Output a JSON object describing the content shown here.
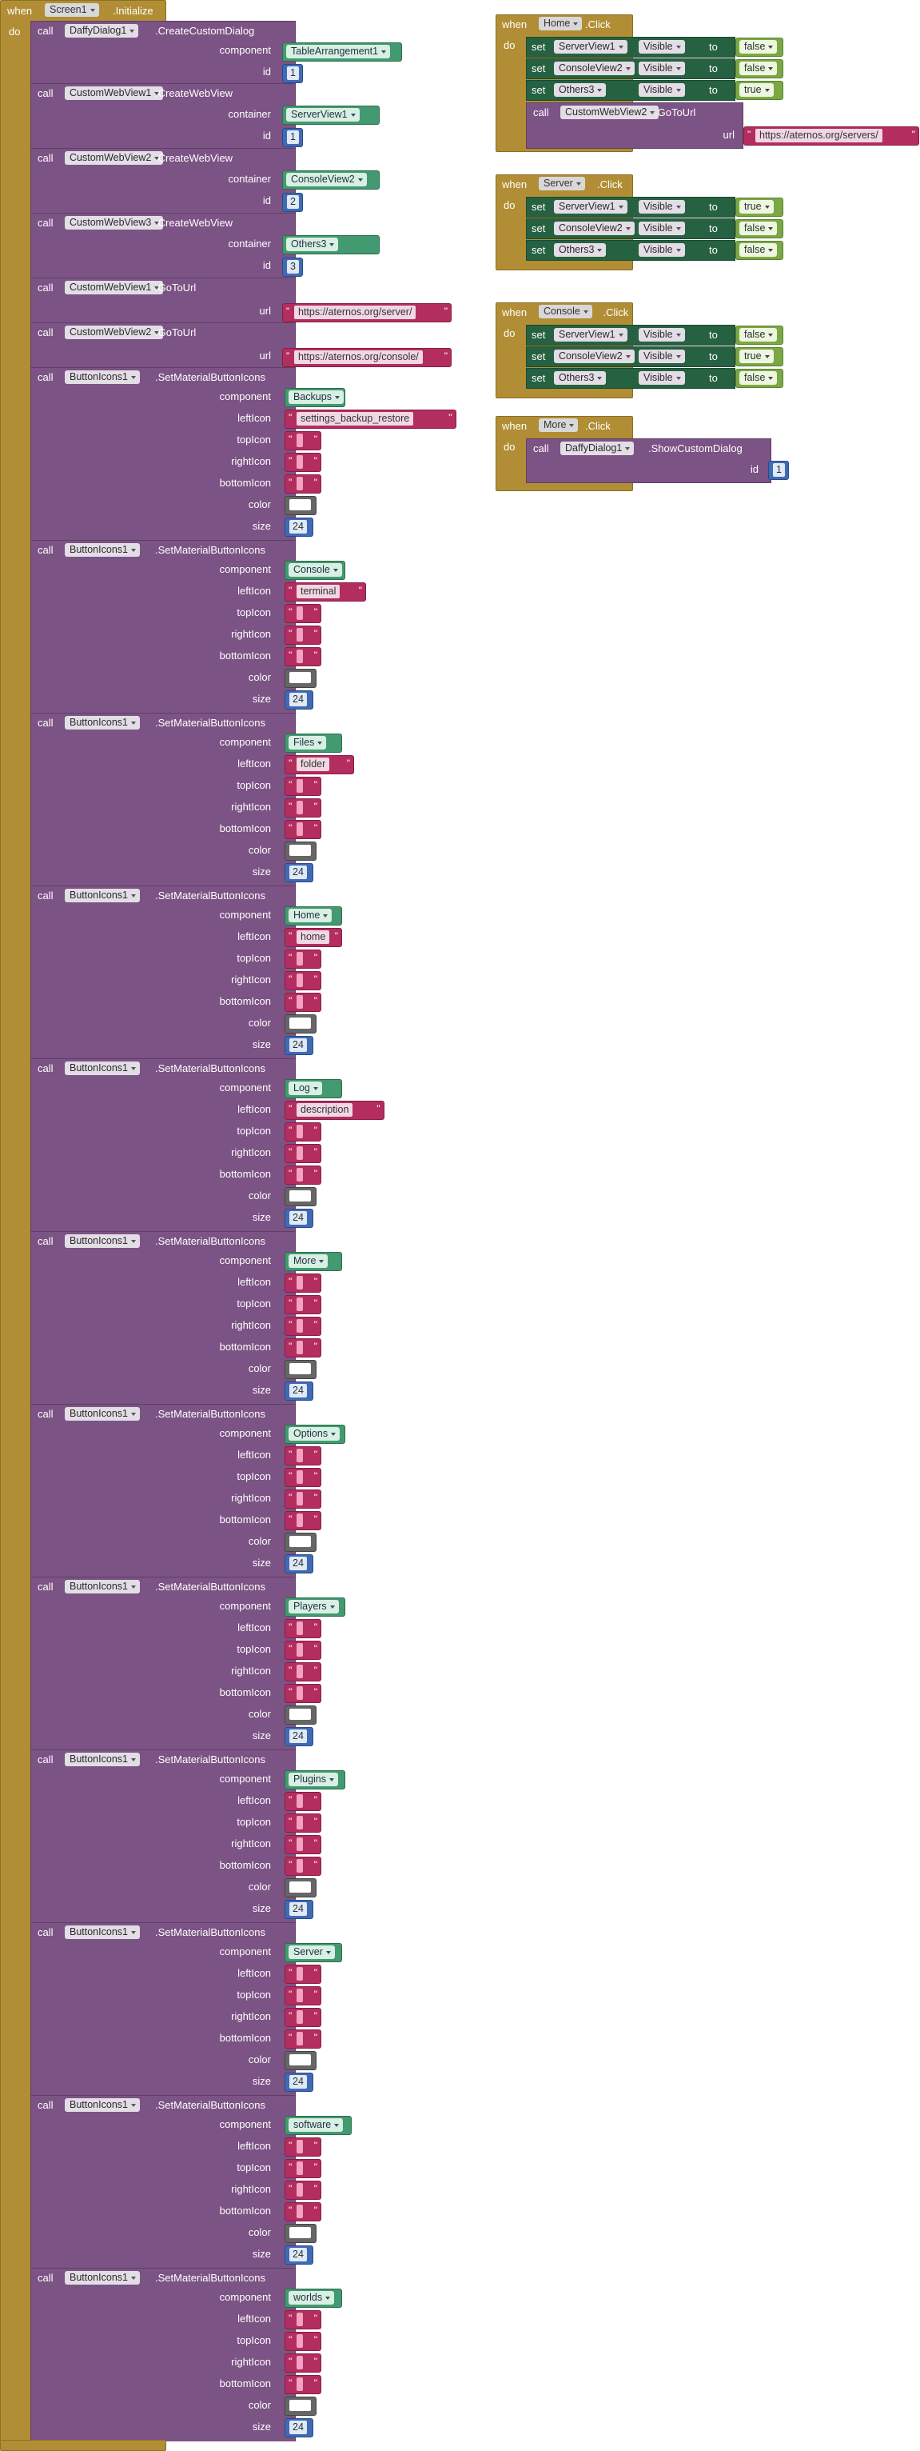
{
  "colors": {
    "event": "#b18e35",
    "procedure": "#7c5385",
    "setter": "#266141",
    "component": "#439970",
    "text": "#b32d5e",
    "number": "#3f6bb5",
    "logic": "#7aa844",
    "color_white": "#ffffff"
  },
  "labels": {
    "when": "when",
    "do": "do",
    "call": "call",
    "set": "set",
    "to": "to",
    "click": ".Click",
    "initialize": ".Initialize",
    "create_custom_dialog": ".CreateCustomDialog",
    "create_web_view": ".CreateWebView",
    "go_to_url": ".GoToUrl",
    "set_material_button_icons": ".SetMaterialButtonIcons",
    "show_custom_dialog": ".ShowCustomDialog",
    "component": "component",
    "id": "id",
    "container": "container",
    "url": "url",
    "leftIcon": "leftIcon",
    "topIcon": "topIcon",
    "rightIcon": "rightIcon",
    "bottomIcon": "bottomIcon",
    "color": "color",
    "size": "size",
    "visible": "Visible",
    "quote": "\""
  },
  "init": {
    "screen": "Screen1",
    "dialog": {
      "object": "DaffyDialog1",
      "component": "TableArrangement1",
      "id": "1"
    },
    "webviews": [
      {
        "object": "CustomWebView1",
        "container": "ServerView1",
        "id": "1"
      },
      {
        "object": "CustomWebView2",
        "container": "ConsoleView2",
        "id": "2"
      },
      {
        "object": "CustomWebView3",
        "container": "Others3",
        "id": "3"
      }
    ],
    "gotos": [
      {
        "object": "CustomWebView1",
        "url": "https://aternos.org/server/"
      },
      {
        "object": "CustomWebView2",
        "url": "https://aternos.org/console/"
      }
    ],
    "icons": [
      {
        "object": "ButtonIcons1",
        "component": "Backups",
        "leftIcon": "settings_backup_restore",
        "size": "24"
      },
      {
        "object": "ButtonIcons1",
        "component": "Console",
        "leftIcon": "terminal",
        "size": "24"
      },
      {
        "object": "ButtonIcons1",
        "component": "Files",
        "leftIcon": "folder",
        "size": "24"
      },
      {
        "object": "ButtonIcons1",
        "component": "Home",
        "leftIcon": "home",
        "size": "24"
      },
      {
        "object": "ButtonIcons1",
        "component": "Log",
        "leftIcon": "description",
        "size": "24"
      },
      {
        "object": "ButtonIcons1",
        "component": "More",
        "leftIcon": "",
        "size": "24"
      },
      {
        "object": "ButtonIcons1",
        "component": "Options",
        "leftIcon": "",
        "size": "24"
      },
      {
        "object": "ButtonIcons1",
        "component": "Players",
        "leftIcon": "",
        "size": "24"
      },
      {
        "object": "ButtonIcons1",
        "component": "Plugins",
        "leftIcon": "",
        "size": "24"
      },
      {
        "object": "ButtonIcons1",
        "component": "Server",
        "leftIcon": "",
        "size": "24"
      },
      {
        "object": "ButtonIcons1",
        "component": "software",
        "leftIcon": "",
        "size": "24"
      },
      {
        "object": "ButtonIcons1",
        "component": "worlds",
        "leftIcon": "",
        "size": "24"
      }
    ]
  },
  "handlers": [
    {
      "button": "Home",
      "sets": [
        {
          "object": "ServerView1",
          "prop": "Visible",
          "value": "false"
        },
        {
          "object": "ConsoleView2",
          "prop": "Visible",
          "value": "false"
        },
        {
          "object": "Others3",
          "prop": "Visible",
          "value": "true"
        }
      ],
      "goto": {
        "object": "CustomWebView2",
        "url": "https://aternos.org/servers/"
      }
    },
    {
      "button": "Server",
      "sets": [
        {
          "object": "ServerView1",
          "prop": "Visible",
          "value": "true"
        },
        {
          "object": "ConsoleView2",
          "prop": "Visible",
          "value": "false"
        },
        {
          "object": "Others3",
          "prop": "Visible",
          "value": "false"
        }
      ]
    },
    {
      "button": "Console",
      "sets": [
        {
          "object": "ServerView1",
          "prop": "Visible",
          "value": "false"
        },
        {
          "object": "ConsoleView2",
          "prop": "Visible",
          "value": "true"
        },
        {
          "object": "Others3",
          "prop": "Visible",
          "value": "false"
        }
      ]
    },
    {
      "button": "More",
      "show": {
        "object": "DaffyDialog1",
        "id": "1"
      }
    }
  ]
}
